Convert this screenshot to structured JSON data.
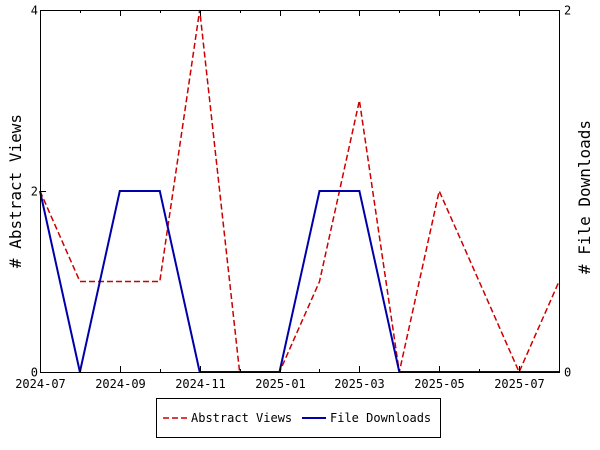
{
  "chart_data": {
    "type": "line",
    "title": "",
    "x": [
      "2024-07",
      "2024-08",
      "2024-09",
      "2024-10",
      "2024-11",
      "2024-12",
      "2025-01",
      "2025-02",
      "2025-03",
      "2025-04",
      "2025-05",
      "2025-06",
      "2025-07",
      "2025-08"
    ],
    "x_tick_labels": [
      "2024-07",
      "2024-09",
      "2024-11",
      "2025-01",
      "2025-03",
      "2025-05",
      "2025-07"
    ],
    "ylabel_left": "# Abstract Views",
    "ylabel_right": "# File Downloads",
    "ylim_left": [
      0,
      4
    ],
    "ylim_right": [
      0,
      2
    ],
    "y_left_ticks": [
      "0",
      "2",
      "4"
    ],
    "y_right_ticks": [
      "0",
      "2"
    ],
    "series": [
      {
        "name": "Abstract Views",
        "axis": "left",
        "color": "#cc0000",
        "style": "dashed",
        "values": [
          2,
          1,
          1,
          1,
          4,
          0,
          0,
          1,
          3,
          0,
          2,
          1,
          0,
          1
        ]
      },
      {
        "name": "File Downloads",
        "axis": "right",
        "color": "#0000aa",
        "style": "solid",
        "values": [
          1,
          0,
          1,
          1,
          0,
          0,
          0,
          1,
          1,
          0,
          0,
          0,
          0,
          0
        ]
      }
    ],
    "grid": false,
    "legend_position": "bottom"
  }
}
